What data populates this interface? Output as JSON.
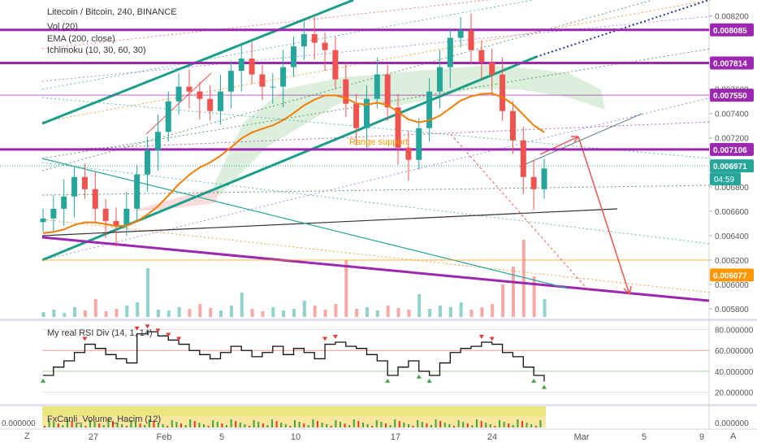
{
  "header": {
    "title": "Litecoin / Bitcoin, 240, BINANCE",
    "ind_vol": "Vol (20)",
    "ind_ema": "EMA (200, close)",
    "ind_ichimoku": "Ichimoku (10, 30, 60, 30)"
  },
  "annotation_range": "Range support",
  "rsi_title": "My real RSI Div (14, 1, 14)",
  "vol_title": "FxCanli_Volume_Hacim (12)",
  "left_axis_label": "0.000000",
  "timezone_btn": "Z",
  "auto_btn": "A",
  "countdown": "04:59",
  "colors": {
    "up": "#26a69a",
    "down": "#ef5350",
    "purple": "#9c27b0",
    "teal": "#1a9e8a",
    "ema": "#f57c00",
    "orange_level": "#ff9800"
  },
  "chart_data": [
    {
      "type": "candlestick",
      "title": "Litecoin / Bitcoin, 240, BINANCE",
      "x_ticks": [
        "27",
        "Feb",
        "5",
        "10",
        "17",
        "24",
        "Mar",
        "5",
        "9"
      ],
      "y_ticks": [
        0.0058,
        0.006,
        0.0062,
        0.0064,
        0.0066,
        0.0068,
        0.007,
        0.0072,
        0.0074,
        0.0076,
        0.0078,
        0.0082
      ],
      "y_range": [
        0.00572,
        0.00833
      ],
      "price_labels": [
        {
          "value": 0.008085,
          "text": "0.008085",
          "color": "#9c27b0"
        },
        {
          "value": 0.007814,
          "text": "0.007814",
          "color": "#9c27b0"
        },
        {
          "value": 0.00755,
          "text": "0.007550",
          "color": "#9c27b0"
        },
        {
          "value": 0.007106,
          "text": "0.007106",
          "color": "#9c27b0"
        },
        {
          "value": 0.006971,
          "text": "0.006971",
          "color": "#26a69a"
        },
        {
          "value": 0.006077,
          "text": "0.006077",
          "color": "#ff9800"
        }
      ],
      "horizontal_levels": [
        0.008085,
        0.007814,
        0.00755,
        0.007106
      ],
      "current_price": 0.006971,
      "support_level": 0.006077,
      "price_path": [
        0.00654,
        0.00662,
        0.00672,
        0.00688,
        0.00678,
        0.00662,
        0.00652,
        0.00648,
        0.00662,
        0.0069,
        0.0071,
        0.00725,
        0.0075,
        0.00762,
        0.00758,
        0.00752,
        0.00742,
        0.00758,
        0.00775,
        0.00785,
        0.00772,
        0.00762,
        0.00762,
        0.00778,
        0.00795,
        0.00805,
        0.00798,
        0.00792,
        0.00768,
        0.00748,
        0.00728,
        0.00752,
        0.00772,
        0.00745,
        0.00712,
        0.00702,
        0.00728,
        0.00758,
        0.00778,
        0.00802,
        0.00808,
        0.00792,
        0.00782,
        0.00772,
        0.00742,
        0.00718,
        0.00688,
        0.00678,
        0.00695
      ]
    },
    {
      "type": "line",
      "title": "My real RSI Div (14, 1, 14)",
      "y_ticks": [
        20,
        40,
        60,
        80
      ],
      "ylim": [
        14,
        86
      ],
      "values": [
        36,
        44,
        50,
        58,
        66,
        62,
        56,
        52,
        48,
        76,
        78,
        74,
        70,
        66,
        60,
        56,
        52,
        58,
        64,
        60,
        54,
        58,
        64,
        56,
        62,
        58,
        52,
        66,
        68,
        64,
        62,
        56,
        50,
        36,
        44,
        50,
        40,
        36,
        48,
        58,
        62,
        64,
        68,
        66,
        58,
        54,
        44,
        36,
        30
      ]
    }
  ]
}
